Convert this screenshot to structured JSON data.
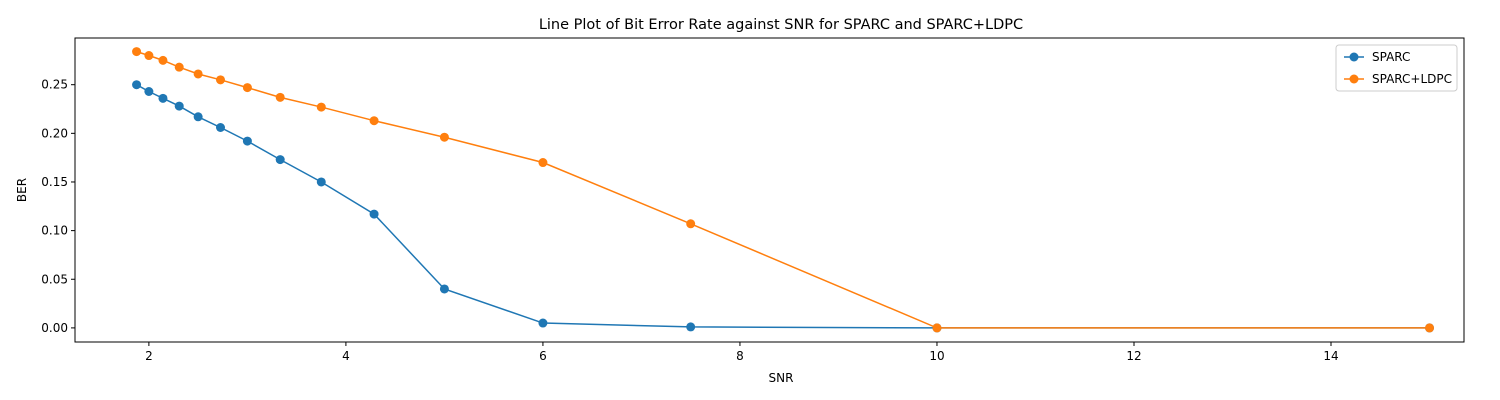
{
  "chart_data": {
    "type": "line",
    "title": "Line Plot of Bit Error Rate against SNR for SPARC and SPARC+LDPC",
    "xlabel": "SNR",
    "ylabel": "BER",
    "xlim": [
      1.25,
      15.35
    ],
    "ylim": [
      -0.0145,
      0.298
    ],
    "xticks": [
      2,
      4,
      6,
      8,
      10,
      12,
      14
    ],
    "yticks": [
      0.0,
      0.05,
      0.1,
      0.15,
      0.2,
      0.25
    ],
    "grid": false,
    "legend_position": "top-right",
    "series": [
      {
        "name": "SPARC",
        "color": "#1f77b4",
        "x": [
          1.875,
          2.0,
          2.143,
          2.308,
          2.5,
          2.727,
          3.0,
          3.333,
          3.75,
          4.286,
          5.0,
          6.0,
          7.5,
          10.0,
          15.0
        ],
        "y": [
          0.25,
          0.243,
          0.236,
          0.228,
          0.217,
          0.206,
          0.192,
          0.173,
          0.15,
          0.117,
          0.04,
          0.005,
          0.001,
          0.0,
          0.0
        ]
      },
      {
        "name": "SPARC+LDPC",
        "color": "#ff7f0e",
        "x": [
          1.875,
          2.0,
          2.143,
          2.308,
          2.5,
          2.727,
          3.0,
          3.333,
          3.75,
          4.286,
          5.0,
          6.0,
          7.5,
          10.0,
          15.0
        ],
        "y": [
          0.284,
          0.28,
          0.275,
          0.268,
          0.261,
          0.255,
          0.247,
          0.237,
          0.227,
          0.213,
          0.196,
          0.17,
          0.107,
          0.0,
          0.0
        ]
      }
    ]
  }
}
